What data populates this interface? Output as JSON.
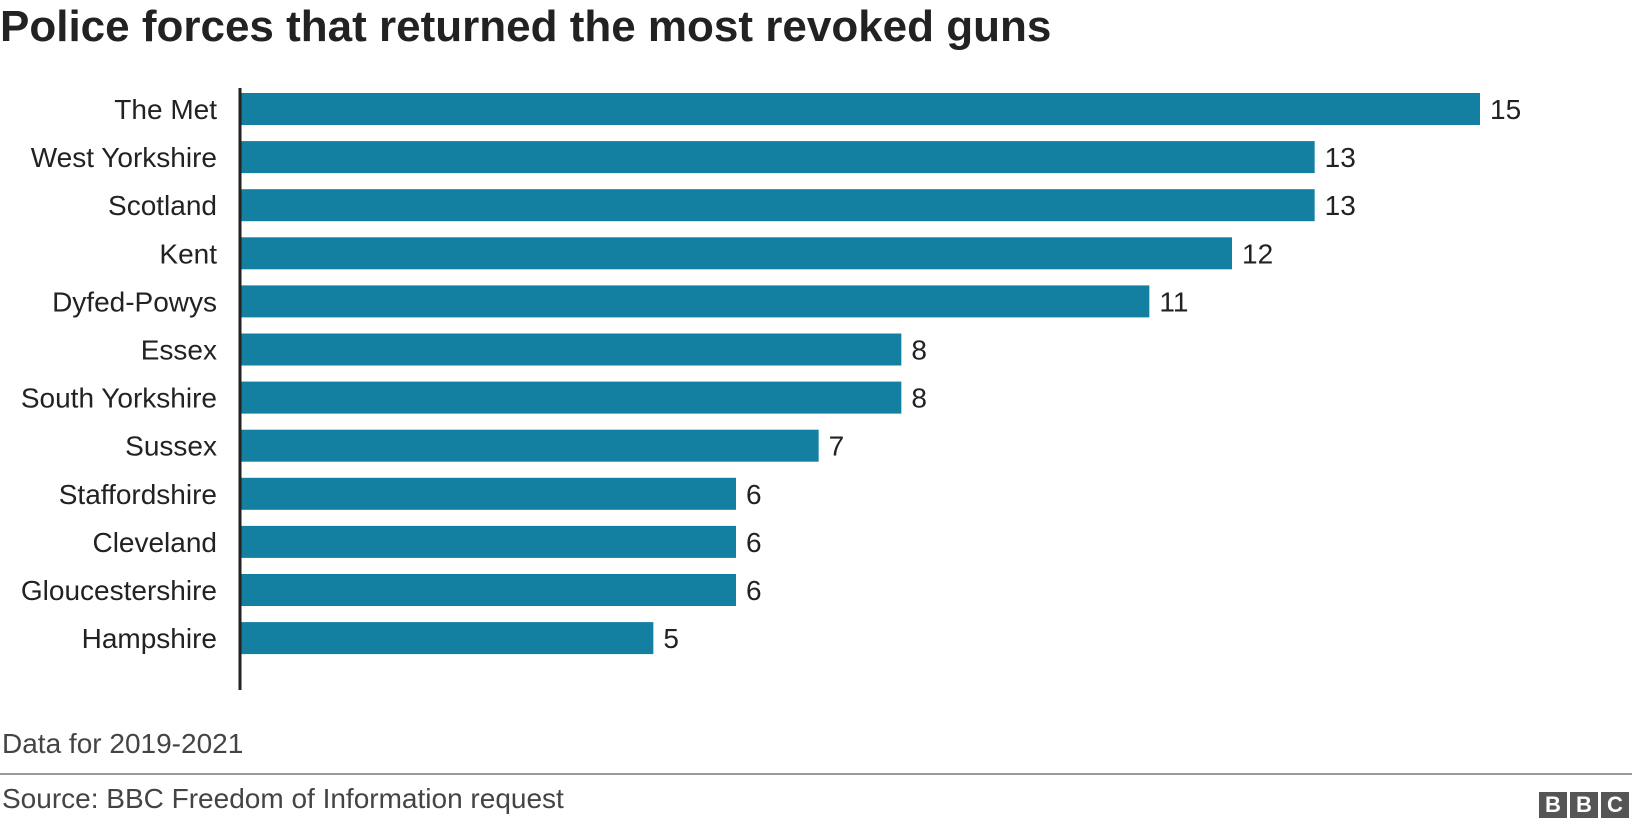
{
  "chart_data": {
    "type": "bar",
    "orientation": "horizontal",
    "title": "Police forces that returned the most revoked guns",
    "categories": [
      "The Met",
      "West Yorkshire",
      "Scotland",
      "Kent",
      "Dyfed-Powys",
      "Essex",
      "South Yorkshire",
      "Sussex",
      "Staffordshire",
      "Cleveland",
      "Gloucestershire",
      "Hampshire"
    ],
    "values": [
      15,
      13,
      13,
      12,
      11,
      8,
      8,
      7,
      6,
      6,
      6,
      5
    ],
    "xlabel": "",
    "ylabel": "",
    "xlim": [
      0,
      15
    ],
    "grid": false,
    "data_labels": true,
    "bar_color": "#1380a1"
  },
  "footer": {
    "note": "Data for 2019-2021",
    "source": "Source: BBC Freedom of Information request",
    "logo_letters": [
      "B",
      "B",
      "C"
    ]
  },
  "colors": {
    "bar": "#1380a1",
    "axis": "#222222",
    "text": "#222222",
    "footer_text": "#444444",
    "rule": "#999999",
    "logo_bg": "#555555"
  }
}
